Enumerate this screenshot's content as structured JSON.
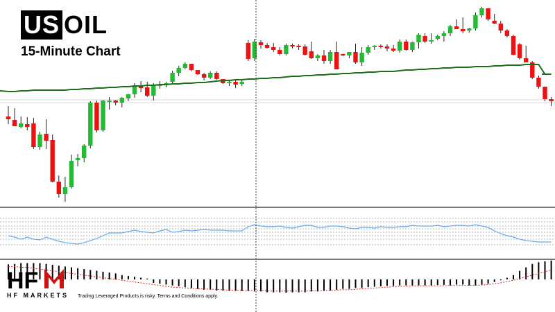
{
  "header": {
    "title_highlight": "US",
    "title_rest": "OIL",
    "subtitle": "15-Minute Chart"
  },
  "footer": {
    "logo_text": "HF MARKETS",
    "disclaimer": "Trading Leveraged Products is risky. Terms and Conditions apply."
  },
  "colors": {
    "bull": "#22bb33",
    "bear": "#ee1111",
    "ma": "#1a6e1a",
    "oscillator": "#66aaee",
    "signal": "#dd2222",
    "histogram": "#000000",
    "panel_border": "#777777"
  },
  "chart_data": [
    {
      "type": "candlestick",
      "series": [
        {
          "name": "",
          "ohlc": [
            [
              168,
              153,
              179,
              172
            ],
            [
              173,
              156,
              180,
              182
            ],
            [
              183,
              168,
              185,
              178
            ],
            [
              179,
              169,
              188,
              183
            ],
            [
              178,
              170,
              215,
              212
            ],
            [
              212,
              190,
              216,
              194
            ],
            [
              193,
              172,
              215,
              203
            ],
            [
              202,
              194,
              263,
              262
            ],
            [
              262,
              253,
              285,
              280
            ],
            [
              280,
              255,
              291,
              270
            ],
            [
              270,
              223,
              272,
              232
            ],
            [
              231,
              222,
              240,
              228
            ],
            [
              228,
              208,
              234,
              210
            ],
            [
              210,
              146,
              214,
              148
            ],
            [
              148,
              145,
              191,
              188
            ],
            [
              188,
              144,
              190,
              145
            ],
            [
              146,
              140,
              158,
              145
            ],
            [
              145,
              144,
              152,
              148
            ],
            [
              148,
              140,
              155,
              141
            ],
            [
              142,
              135,
              146,
              136
            ],
            [
              136,
              120,
              141,
              123
            ],
            [
              123,
              117,
              133,
              127
            ],
            [
              126,
              118,
              140,
              138
            ],
            [
              138,
              120,
              145,
              123
            ],
            [
              123,
              117,
              128,
              122
            ],
            [
              122,
              118,
              126,
              120
            ],
            [
              118,
              102,
              120,
              105
            ],
            [
              105,
              95,
              110,
              98
            ],
            [
              98,
              90,
              100,
              92
            ],
            [
              92,
              93,
              103,
              101
            ],
            [
              101,
              101,
              108,
              107
            ],
            [
              107,
              105,
              116,
              112
            ],
            [
              112,
              103,
              114,
              105
            ],
            [
              105,
              103,
              115,
              114
            ],
            [
              114,
              115,
              121,
              120
            ],
            [
              120,
              116,
              124,
              118
            ],
            [
              118,
              115,
              127,
              122
            ],
            [
              121,
              115,
              124,
              118
            ],
            [
              62,
              58,
              88,
              85
            ],
            [
              84,
              56,
              88,
              60
            ],
            [
              61,
              58,
              70,
              65
            ],
            [
              65,
              62,
              70,
              69
            ],
            [
              68,
              62,
              75,
              72
            ],
            [
              72,
              68,
              80,
              78
            ],
            [
              78,
              63,
              80,
              65
            ],
            [
              65,
              63,
              70,
              66
            ],
            [
              66,
              64,
              72,
              67
            ],
            [
              67,
              64,
              80,
              79
            ],
            [
              74,
              60,
              85,
              84
            ],
            [
              84,
              78,
              88,
              80
            ],
            [
              80,
              72,
              92,
              88
            ],
            [
              88,
              72,
              92,
              75
            ],
            [
              75,
              60,
              100,
              100
            ],
            [
              78,
              78,
              81,
              80
            ],
            [
              80,
              75,
              84,
              75
            ],
            [
              75,
              63,
              92,
              90
            ],
            [
              90,
              68,
              95,
              76
            ],
            [
              76,
              65,
              79,
              68
            ],
            [
              68,
              65,
              72,
              66
            ],
            [
              66,
              64,
              70,
              67
            ],
            [
              67,
              64,
              74,
              70
            ],
            [
              70,
              65,
              75,
              73
            ],
            [
              73,
              57,
              76,
              60
            ],
            [
              60,
              57,
              73,
              72
            ],
            [
              72,
              60,
              75,
              61
            ],
            [
              61,
              48,
              70,
              50
            ],
            [
              52,
              48,
              62,
              60
            ],
            [
              60,
              48,
              63,
              58
            ],
            [
              56,
              50,
              58,
              52
            ],
            [
              52,
              45,
              60,
              48
            ],
            [
              48,
              36,
              52,
              38
            ],
            [
              38,
              28,
              42,
              42
            ],
            [
              42,
              25,
              48,
              45
            ],
            [
              44,
              40,
              47,
              41
            ],
            [
              41,
              18,
              44,
              22
            ],
            [
              22,
              10,
              25,
              12
            ],
            [
              12,
              12,
              30,
              28
            ],
            [
              30,
              20,
              35,
              34
            ],
            [
              34,
              30,
              48,
              44
            ],
            [
              44,
              42,
              54,
              52
            ],
            [
              52,
              50,
              80,
              79
            ],
            [
              64,
              62,
              86,
              84
            ],
            [
              84,
              66,
              88,
              90
            ],
            [
              90,
              88,
              114,
              112
            ],
            [
              112,
              109,
              128,
              125
            ],
            [
              125,
              125,
              146,
              143
            ],
            [
              143,
              140,
              153,
              146
            ]
          ]
        }
      ],
      "moving_average": [
        132,
        132,
        131,
        131,
        130,
        130,
        130,
        130,
        130,
        130,
        129,
        129,
        128,
        128,
        127,
        127,
        126,
        126,
        125,
        125,
        124,
        124,
        123,
        123,
        122,
        122,
        121,
        121,
        120,
        120,
        119,
        119,
        118,
        117,
        116,
        116,
        115,
        115,
        114,
        114,
        113,
        113,
        112,
        112,
        111,
        110,
        110,
        109,
        109,
        108,
        108,
        107,
        107,
        106,
        106,
        105,
        105,
        104,
        104,
        103,
        103,
        103,
        102,
        101,
        101,
        100,
        100,
        99,
        99,
        98,
        98,
        97,
        97,
        97,
        96,
        96,
        96,
        95,
        95,
        94,
        94,
        94,
        93,
        93,
        93,
        107,
        107
      ],
      "ylim": [
        300,
        0
      ]
    },
    {
      "type": "line",
      "series": [
        {
          "name": "",
          "values": [
            340,
            342,
            345,
            342,
            345,
            346,
            342,
            345,
            348,
            350,
            351,
            352,
            350,
            347,
            344,
            340,
            336,
            336,
            336,
            334,
            332,
            334,
            335,
            336,
            333,
            331,
            335,
            334,
            332,
            333,
            332,
            331,
            332,
            332,
            332,
            333,
            333,
            333,
            327,
            324,
            326,
            327,
            327,
            326,
            328,
            329,
            327,
            325,
            325,
            328,
            328,
            326,
            326,
            327,
            329,
            330,
            328,
            328,
            329,
            327,
            328,
            328,
            327,
            327,
            325,
            326,
            326,
            326,
            325,
            327,
            326,
            325,
            325,
            326,
            324,
            326,
            328,
            333,
            337,
            340,
            342,
            345,
            347,
            348,
            349,
            349,
            349
          ]
        }
      ],
      "levels": [
        315,
        320,
        326,
        330,
        335,
        340,
        345,
        353
      ],
      "ylim": [
        297,
        372
      ]
    },
    {
      "type": "bar",
      "series": [
        {
          "name": "",
          "values": [
            35,
            36,
            38,
            38,
            38,
            38,
            36,
            34,
            32,
            30,
            28,
            26,
            24,
            22,
            20,
            18,
            16,
            14,
            10,
            8,
            6,
            4,
            2,
            -8,
            -10,
            -12,
            -14,
            -16,
            -18,
            -20,
            -22,
            -24,
            -24,
            -26,
            -26,
            -27,
            -27,
            -27,
            -27,
            -28,
            -28,
            -30,
            -30,
            -30,
            -31,
            -30,
            -30,
            -30,
            -28,
            -28,
            -27,
            -26,
            -24,
            -22,
            -22,
            -20,
            -20,
            -18,
            -17,
            -16,
            -15,
            -15,
            -14,
            -14,
            -14,
            -14,
            -14,
            -14,
            -13,
            -13,
            -14,
            -12,
            -12,
            -14,
            -14,
            -12,
            -10,
            -6,
            -2,
            4,
            10,
            20,
            28,
            36,
            40,
            42,
            44
          ]
        },
        {
          "name": "",
          "values": [
            30,
            30,
            28,
            28,
            26,
            24,
            22,
            20,
            18,
            16,
            14,
            12,
            10,
            8,
            6,
            4,
            2,
            0,
            -2,
            -4,
            -6,
            -8,
            -10,
            -12,
            -14,
            -16,
            -18,
            -19,
            -20,
            -21,
            -22,
            -22,
            -23,
            -23,
            -24,
            -25,
            -25,
            -26,
            -26,
            -26,
            -26,
            -27,
            -27,
            -27,
            -27,
            -27,
            -27,
            -27,
            -27,
            -26,
            -26,
            -26,
            -25,
            -24,
            -24,
            -23,
            -22,
            -21,
            -20,
            -19,
            -18,
            -17,
            -16,
            -16,
            -15,
            -15,
            -15,
            -15,
            -15,
            -15,
            -14,
            -14,
            -14,
            -14,
            -14,
            -13,
            -12,
            -10,
            -8,
            -5,
            -2,
            2,
            6,
            10,
            14,
            18,
            22
          ]
        }
      ],
      "ylim": [
        -45,
        45
      ]
    }
  ]
}
